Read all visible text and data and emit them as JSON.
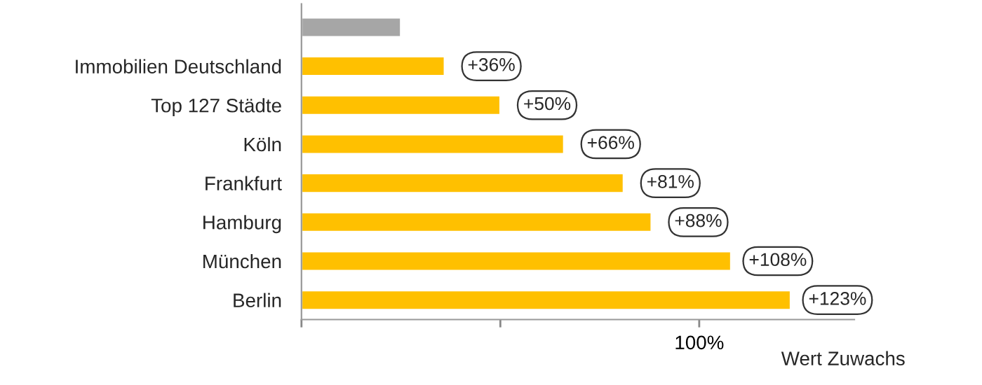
{
  "chart_data": {
    "type": "bar",
    "orientation": "horizontal",
    "categories": [
      null,
      "Immobilien Deutschland",
      "Top 127 Städte",
      "Köln",
      "Frankfurt",
      "Hamburg",
      "München",
      "Berlin"
    ],
    "values": [
      25,
      36,
      50,
      66,
      81,
      88,
      108,
      123
    ],
    "value_labels": [
      null,
      "+36%",
      "+50%",
      "+66%",
      "+81%",
      "+88%",
      "+108%",
      "+123%"
    ],
    "colors": [
      "#a6a6a6",
      "#ffc000",
      "#ffc000",
      "#ffc000",
      "#ffc000",
      "#ffc000",
      "#ffc000",
      "#ffc000"
    ],
    "xlim": [
      0,
      139
    ],
    "xticks": [
      {
        "value": 0,
        "label": null
      },
      {
        "value": 50,
        "label": null
      },
      {
        "value": 100,
        "label": "100%"
      }
    ],
    "xlabel": "Wert Zuwachs",
    "grid": false,
    "legend": false
  }
}
